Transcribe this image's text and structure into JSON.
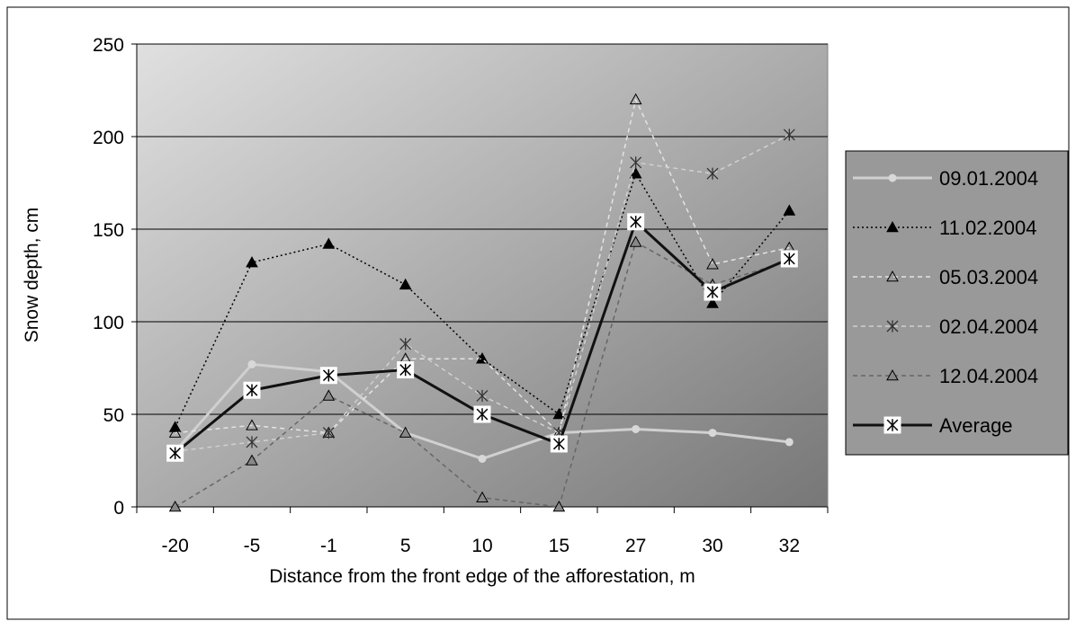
{
  "chart_data": {
    "type": "line",
    "title": "",
    "xlabel": "Distance from the front edge of the afforestation, m",
    "ylabel": "Snow depth, cm",
    "categories": [
      "-20",
      "-5",
      "-1",
      "5",
      "10",
      "15",
      "27",
      "30",
      "32"
    ],
    "ylim": [
      0,
      250
    ],
    "yticks": [
      "0",
      "50",
      "100",
      "150",
      "200",
      "250"
    ],
    "grid": true,
    "legend_position": "right",
    "series": [
      {
        "name": "09.01.2004",
        "values": [
          30,
          77,
          73,
          40,
          26,
          40,
          42,
          40,
          35
        ],
        "color": "#d0d0d0",
        "dash": "solid",
        "marker": "circle"
      },
      {
        "name": "11.02.2004",
        "values": [
          43,
          132,
          142,
          120,
          80,
          50,
          180,
          110,
          160
        ],
        "color": "#000000",
        "dash": "dotted",
        "marker": "triangle-filled"
      },
      {
        "name": "05.03.2004",
        "values": [
          40,
          44,
          40,
          80,
          80,
          40,
          220,
          131,
          140
        ],
        "color": "#e4e4e4",
        "dash": "dashed",
        "marker": "triangle-open"
      },
      {
        "name": "02.04.2004",
        "values": [
          30,
          35,
          40,
          88,
          60,
          40,
          186,
          180,
          201
        ],
        "color": "#d0d0d0",
        "dash": "dashed",
        "marker": "star"
      },
      {
        "name": "12.04.2004",
        "values": [
          0,
          25,
          60,
          40,
          5,
          0,
          143,
          120,
          133
        ],
        "color": "#666666",
        "dash": "dashed",
        "marker": "triangle-gray"
      },
      {
        "name": "Average",
        "values": [
          29,
          63,
          71,
          74,
          50,
          34,
          154,
          116,
          134
        ],
        "color": "#111111",
        "dash": "solid-thick",
        "marker": "box-star"
      }
    ]
  }
}
